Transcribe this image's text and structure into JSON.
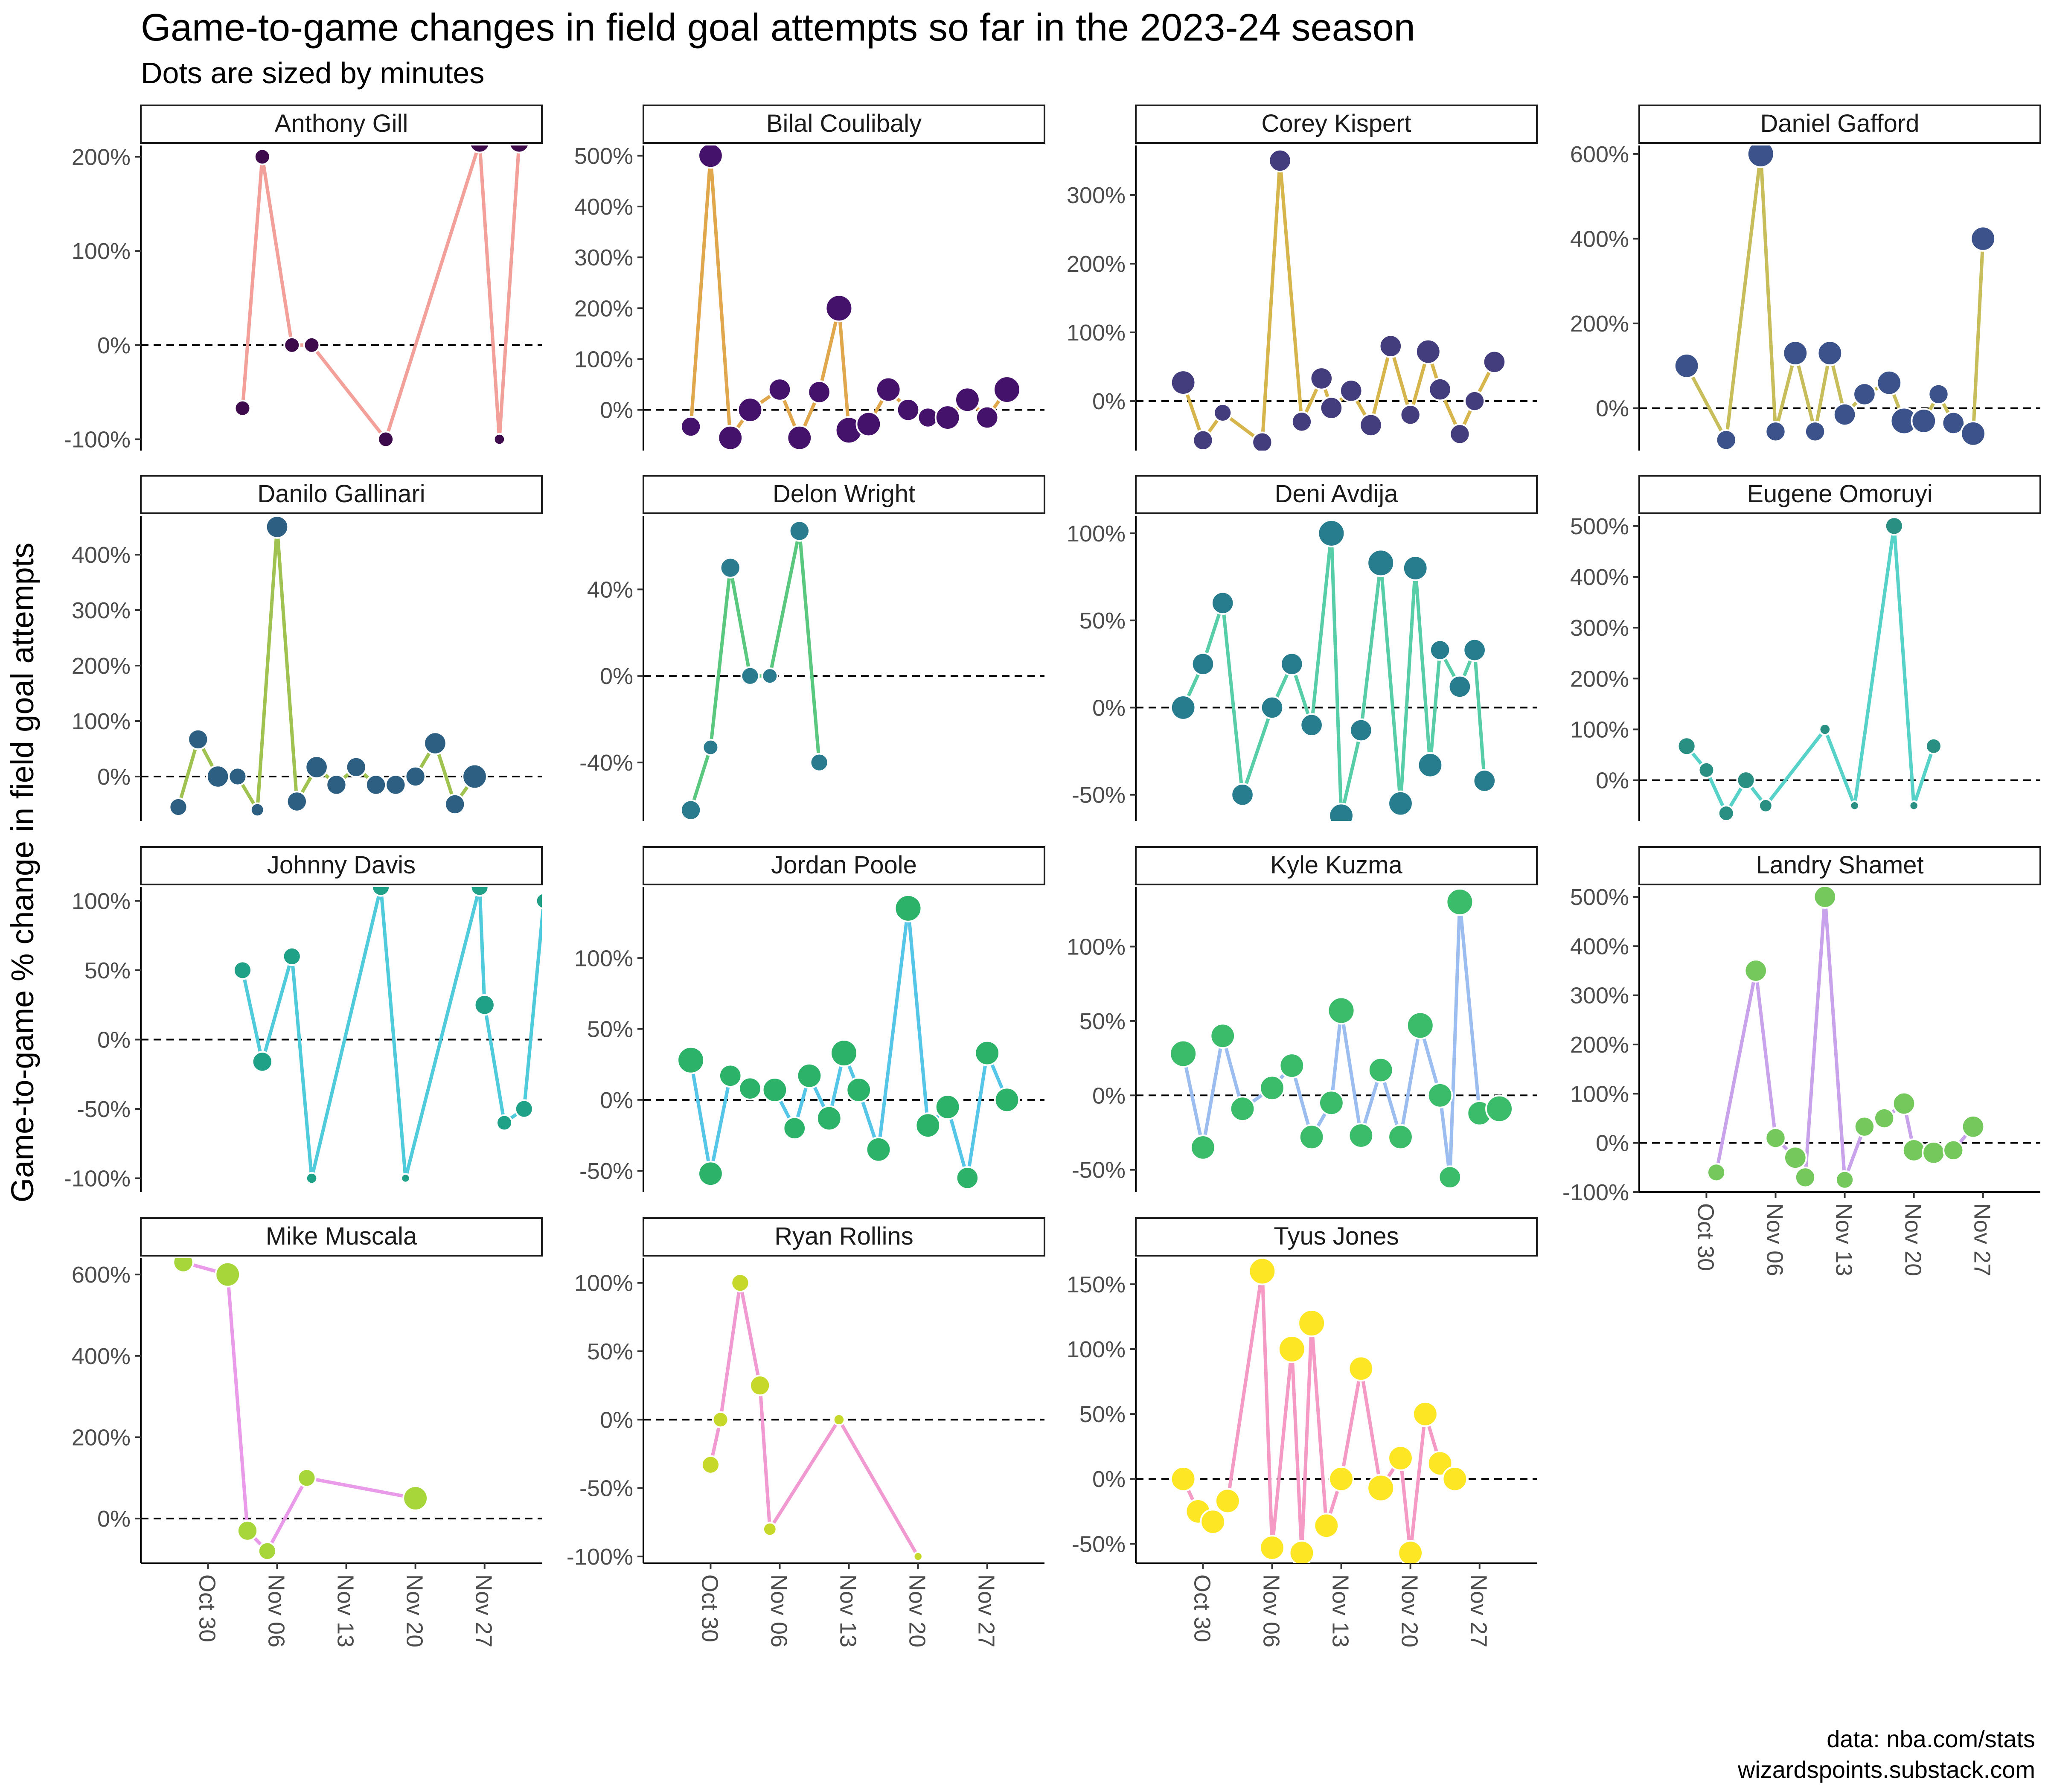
{
  "chart_data": {
    "type": "line",
    "title": "Game-to-game changes in field goal attempts so far in the 2023-24 season",
    "subtitle": "Dots are sized by minutes",
    "ylabel": "Game-to-game % change in field goal attempts",
    "xlabel": "",
    "caption": [
      "data: nba.com/stats",
      "wizardspoints.substack.com"
    ],
    "x_ticks": [
      "Oct 30",
      "Nov 06",
      "Nov 13",
      "Nov 20",
      "Nov 27"
    ],
    "x_tick_days": [
      5,
      12,
      19,
      26,
      33
    ],
    "x_range_days": [
      -1.8,
      38.8
    ],
    "x_unit": "days from Oct 25, 2023",
    "panels": [
      {
        "name": "Anthony Gill",
        "color": "#f4a09a",
        "dot": "#3d0a4c",
        "ylim": [
          -112,
          212
        ],
        "yticks": [
          -100,
          0,
          100,
          200
        ],
        "points": [
          [
            8.5,
            -67,
            5
          ],
          [
            10.5,
            200,
            5
          ],
          [
            13.5,
            0,
            5
          ],
          [
            15.5,
            0,
            5
          ],
          [
            23,
            -100,
            5
          ],
          [
            32.5,
            215,
            7
          ],
          [
            34.5,
            -100,
            3
          ],
          [
            36.5,
            215,
            7
          ]
        ]
      },
      {
        "name": "Bilal Coulibaly",
        "color": "#e0a74c",
        "dot": "#45126b",
        "ylim": [
          -80,
          520
        ],
        "yticks": [
          0,
          100,
          200,
          300,
          400,
          500
        ],
        "points": [
          [
            3,
            -33,
            7
          ],
          [
            5,
            500,
            9
          ],
          [
            7,
            -55,
            9
          ],
          [
            9,
            0,
            9
          ],
          [
            12,
            40,
            8
          ],
          [
            14,
            -55,
            9
          ],
          [
            16,
            35,
            8
          ],
          [
            18,
            200,
            10
          ],
          [
            19,
            -40,
            10
          ],
          [
            21,
            -28,
            9
          ],
          [
            23,
            40,
            9
          ],
          [
            25,
            0,
            8
          ],
          [
            27,
            -15,
            7
          ],
          [
            29,
            -15,
            9
          ],
          [
            31,
            20,
            9
          ],
          [
            33,
            -15,
            8
          ],
          [
            35,
            40,
            10
          ]
        ]
      },
      {
        "name": "Corey Kispert",
        "color": "#d7b54d",
        "dot": "#433d7e",
        "ylim": [
          -72,
          372
        ],
        "yticks": [
          0,
          100,
          200,
          300
        ],
        "points": [
          [
            3,
            27,
            9
          ],
          [
            5,
            -57,
            7
          ],
          [
            7,
            -17,
            6
          ],
          [
            11,
            -60,
            7
          ],
          [
            12.8,
            350,
            8
          ],
          [
            15,
            -30,
            7
          ],
          [
            17,
            33,
            8
          ],
          [
            18,
            -10,
            8
          ],
          [
            20,
            15,
            8
          ],
          [
            22,
            -35,
            8
          ],
          [
            24,
            80,
            8
          ],
          [
            26,
            -20,
            7
          ],
          [
            27.8,
            72,
            9
          ],
          [
            29,
            17,
            8
          ],
          [
            31,
            -48,
            7
          ],
          [
            32.5,
            0,
            7
          ],
          [
            34.5,
            57,
            8
          ]
        ]
      },
      {
        "name": "Daniel Gafford",
        "color": "#c7bd5b",
        "dot": "#3b528b",
        "ylim": [
          -100,
          620
        ],
        "yticks": [
          0,
          200,
          400,
          600
        ],
        "points": [
          [
            3,
            100,
            9
          ],
          [
            7,
            -75,
            7
          ],
          [
            10.5,
            600,
            10
          ],
          [
            12,
            -55,
            7
          ],
          [
            14,
            130,
            9
          ],
          [
            16,
            -55,
            7
          ],
          [
            17.5,
            130,
            9
          ],
          [
            19,
            -15,
            8
          ],
          [
            21,
            33,
            8
          ],
          [
            23.5,
            60,
            9
          ],
          [
            25,
            -30,
            10
          ],
          [
            27,
            -30,
            9
          ],
          [
            28.5,
            33,
            7
          ],
          [
            30,
            -35,
            8
          ],
          [
            32,
            -60,
            9
          ],
          [
            33,
            400,
            9
          ]
        ]
      },
      {
        "name": "Danilo Gallinari",
        "color": "#a0c250",
        "dot": "#2d5f83",
        "ylim": [
          -80,
          470
        ],
        "yticks": [
          0,
          100,
          200,
          300,
          400
        ],
        "points": [
          [
            2,
            -55,
            6
          ],
          [
            4,
            67,
            7
          ],
          [
            6,
            0,
            8
          ],
          [
            8,
            0,
            6
          ],
          [
            10,
            -60,
            4
          ],
          [
            12,
            450,
            8
          ],
          [
            14,
            -45,
            7
          ],
          [
            16,
            17,
            8
          ],
          [
            18,
            -15,
            7
          ],
          [
            20,
            17,
            7
          ],
          [
            22,
            -15,
            7
          ],
          [
            24,
            -15,
            7
          ],
          [
            26,
            0,
            7
          ],
          [
            28,
            60,
            8
          ],
          [
            30,
            -50,
            7
          ],
          [
            32,
            0,
            9
          ]
        ]
      },
      {
        "name": "Delon Wright",
        "color": "#5ac87e",
        "dot": "#2a7b8e",
        "ylim": [
          -67,
          74
        ],
        "yticks": [
          -40,
          0,
          40
        ],
        "points": [
          [
            3,
            -62,
            7
          ],
          [
            5,
            -33,
            5
          ],
          [
            7,
            50,
            7
          ],
          [
            9,
            0,
            6
          ],
          [
            11,
            0,
            5
          ],
          [
            14,
            67,
            7
          ],
          [
            16,
            -40,
            6
          ]
        ]
      },
      {
        "name": "Deni Avdija",
        "color": "#57cea7",
        "dot": "#277d8e",
        "ylim": [
          -65,
          110
        ],
        "yticks": [
          -50,
          0,
          50,
          100
        ],
        "points": [
          [
            3,
            0,
            9
          ],
          [
            5,
            25,
            8
          ],
          [
            7,
            60,
            8
          ],
          [
            9,
            -50,
            8
          ],
          [
            12,
            0,
            8
          ],
          [
            14,
            25,
            8
          ],
          [
            16,
            -10,
            8
          ],
          [
            18,
            100,
            10
          ],
          [
            19,
            -62,
            9
          ],
          [
            21,
            -13,
            8
          ],
          [
            23,
            83,
            10
          ],
          [
            25,
            -55,
            9
          ],
          [
            26.5,
            80,
            9
          ],
          [
            28,
            -33,
            9
          ],
          [
            29,
            33,
            7
          ],
          [
            31,
            12,
            8
          ],
          [
            32.5,
            33,
            8
          ],
          [
            33.5,
            -42,
            8
          ]
        ]
      },
      {
        "name": "Eugene Omoruyi",
        "color": "#56d2c8",
        "dot": "#2a8f83",
        "ylim": [
          -80,
          520
        ],
        "yticks": [
          0,
          100,
          200,
          300,
          400,
          500
        ],
        "points": [
          [
            3,
            67,
            6
          ],
          [
            5,
            20,
            5
          ],
          [
            7,
            -65,
            5
          ],
          [
            9,
            0,
            6
          ],
          [
            11,
            -50,
            4
          ],
          [
            17,
            100,
            3
          ],
          [
            20,
            -50,
            2
          ],
          [
            24,
            500,
            6
          ],
          [
            26,
            -50,
            2
          ],
          [
            28,
            67,
            5
          ]
        ]
      },
      {
        "name": "Johnny Davis",
        "color": "#4fcbdb",
        "dot": "#1fa187",
        "ylim": [
          -110,
          110
        ],
        "yticks": [
          -100,
          -50,
          0,
          50,
          100
        ],
        "points": [
          [
            8.5,
            50,
            6
          ],
          [
            10.5,
            -16,
            7
          ],
          [
            13.5,
            60,
            6
          ],
          [
            15.5,
            -100,
            3
          ],
          [
            22.5,
            110,
            6
          ],
          [
            25,
            -100,
            2
          ],
          [
            32.5,
            110,
            6
          ],
          [
            33,
            25,
            7
          ],
          [
            35,
            -60,
            5
          ],
          [
            37,
            -50,
            6
          ],
          [
            39,
            100,
            5
          ]
        ]
      },
      {
        "name": "Jordan Poole",
        "color": "#55c5e8",
        "dot": "#2db26a",
        "ylim": [
          -65,
          150
        ],
        "yticks": [
          -50,
          0,
          50,
          100
        ],
        "points": [
          [
            3,
            28,
            10
          ],
          [
            5,
            -52,
            9
          ],
          [
            7,
            17,
            8
          ],
          [
            9,
            8,
            8
          ],
          [
            11.5,
            7,
            9
          ],
          [
            13.5,
            -20,
            8
          ],
          [
            15,
            17,
            9
          ],
          [
            17,
            -13,
            9
          ],
          [
            18.5,
            33,
            10
          ],
          [
            20,
            7,
            9
          ],
          [
            22,
            -35,
            9
          ],
          [
            25,
            135,
            10
          ],
          [
            27,
            -18,
            9
          ],
          [
            29,
            -5,
            9
          ],
          [
            31,
            -55,
            8
          ],
          [
            33,
            33,
            9
          ],
          [
            35,
            0,
            9
          ]
        ]
      },
      {
        "name": "Kyle Kuzma",
        "color": "#9bbdf0",
        "dot": "#3bbc6b",
        "ylim": [
          -65,
          140
        ],
        "yticks": [
          -50,
          0,
          50,
          100
        ],
        "points": [
          [
            3,
            28,
            10
          ],
          [
            5,
            -35,
            9
          ],
          [
            7,
            40,
            9
          ],
          [
            9,
            -9,
            9
          ],
          [
            12,
            5,
            9
          ],
          [
            14,
            20,
            9
          ],
          [
            16,
            -28,
            9
          ],
          [
            18,
            -5,
            9
          ],
          [
            19,
            57,
            10
          ],
          [
            21,
            -27,
            9
          ],
          [
            23,
            17,
            9
          ],
          [
            25,
            -28,
            9
          ],
          [
            27,
            47,
            10
          ],
          [
            29,
            0,
            9
          ],
          [
            30,
            -55,
            8
          ],
          [
            31,
            130,
            10
          ],
          [
            33,
            -12,
            9
          ],
          [
            35,
            -9,
            10
          ]
        ]
      },
      {
        "name": "Landry Shamet",
        "color": "#c8a2ea",
        "dot": "#74c85c",
        "ylim": [
          -100,
          520
        ],
        "yticks": [
          -100,
          0,
          100,
          200,
          300,
          400,
          500
        ],
        "points": [
          [
            6,
            -60,
            6
          ],
          [
            10,
            350,
            8
          ],
          [
            12,
            10,
            7
          ],
          [
            14,
            -30,
            8
          ],
          [
            15,
            -70,
            7
          ],
          [
            17,
            500,
            8
          ],
          [
            19,
            -75,
            6
          ],
          [
            21,
            33,
            7
          ],
          [
            23,
            50,
            7
          ],
          [
            25,
            80,
            8
          ],
          [
            26,
            -15,
            8
          ],
          [
            28,
            -20,
            8
          ],
          [
            30,
            -15,
            7
          ],
          [
            32,
            33,
            8
          ]
        ]
      },
      {
        "name": "Mike Muscala",
        "color": "#e99ae9",
        "dot": "#a6d639",
        "ylim": [
          -110,
          640
        ],
        "yticks": [
          0,
          200,
          400,
          600
        ],
        "points": [
          [
            2.5,
            630,
            7
          ],
          [
            7,
            600,
            9
          ],
          [
            9,
            -30,
            7
          ],
          [
            11,
            -80,
            6
          ],
          [
            15,
            100,
            6
          ],
          [
            26,
            50,
            9
          ]
        ]
      },
      {
        "name": "Ryan Rollins",
        "color": "#f19ad2",
        "dot": "#c6d92a",
        "ylim": [
          -105,
          118
        ],
        "yticks": [
          -100,
          -50,
          0,
          50,
          100
        ],
        "points": [
          [
            5,
            -33,
            6
          ],
          [
            6,
            0,
            5
          ],
          [
            8,
            100,
            6
          ],
          [
            10,
            25,
            7
          ],
          [
            11,
            -80,
            4
          ],
          [
            18,
            0,
            3
          ],
          [
            26,
            -100,
            2
          ]
        ]
      },
      {
        "name": "Tyus Jones",
        "color": "#f49ac4",
        "dot": "#fde725",
        "ylim": [
          -65,
          170
        ],
        "yticks": [
          -50,
          0,
          50,
          100,
          150
        ],
        "points": [
          [
            3,
            0,
            9
          ],
          [
            4.5,
            -25,
            9
          ],
          [
            6,
            -33,
            9
          ],
          [
            7.5,
            -17,
            9
          ],
          [
            11,
            160,
            10
          ],
          [
            12,
            -53,
            9
          ],
          [
            14,
            100,
            10
          ],
          [
            15,
            -57,
            9
          ],
          [
            16,
            120,
            10
          ],
          [
            17.5,
            -36,
            9
          ],
          [
            19,
            0,
            9
          ],
          [
            21,
            85,
            9
          ],
          [
            23,
            -7,
            10
          ],
          [
            25,
            16,
            9
          ],
          [
            26,
            -57,
            9
          ],
          [
            27.5,
            50,
            9
          ],
          [
            29,
            12,
            9
          ],
          [
            30.5,
            0,
            9
          ]
        ]
      }
    ]
  }
}
